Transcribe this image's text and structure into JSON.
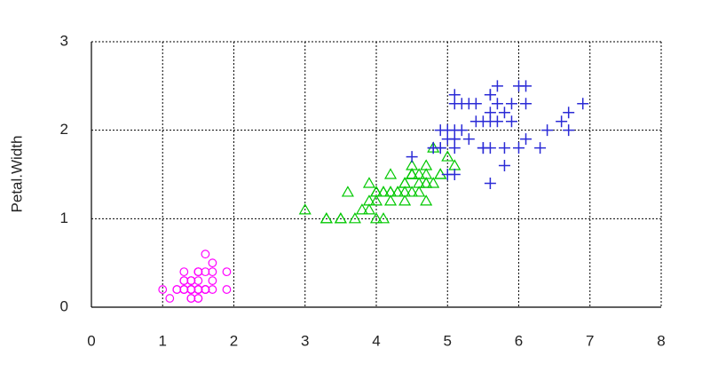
{
  "chart_data": {
    "type": "scatter",
    "y_label": "Petal.Width",
    "xlim": [
      0,
      8
    ],
    "xticks": [
      0,
      1,
      2,
      3,
      4,
      5,
      6,
      7,
      8
    ],
    "ylim": [
      0,
      3
    ],
    "yticks": [
      0,
      1,
      2,
      3
    ],
    "grid": true,
    "series": [
      {
        "color": "#ff00ff",
        "marker": "circle",
        "x": [
          1.4,
          1.4,
          1.3,
          1.5,
          1.4,
          1.7,
          1.4,
          1.5,
          1.4,
          1.5,
          1.5,
          1.6,
          1.4,
          1.1,
          1.2,
          1.5,
          1.3,
          1.4,
          1.7,
          1.5,
          1.7,
          1.5,
          1.0,
          1.7,
          1.9,
          1.6,
          1.6,
          1.5,
          1.4,
          1.6,
          1.6,
          1.5,
          1.5,
          1.4,
          1.5,
          1.2,
          1.3,
          1.4,
          1.3,
          1.5,
          1.3,
          1.3,
          1.3,
          1.6,
          1.9,
          1.4,
          1.6,
          1.4,
          1.5,
          1.4
        ],
        "values": [
          0.2,
          0.2,
          0.2,
          0.2,
          0.2,
          0.4,
          0.3,
          0.2,
          0.2,
          0.1,
          0.2,
          0.2,
          0.1,
          0.1,
          0.2,
          0.4,
          0.4,
          0.3,
          0.3,
          0.3,
          0.2,
          0.4,
          0.2,
          0.5,
          0.2,
          0.2,
          0.4,
          0.2,
          0.2,
          0.2,
          0.2,
          0.4,
          0.1,
          0.2,
          0.2,
          0.2,
          0.2,
          0.1,
          0.2,
          0.2,
          0.3,
          0.3,
          0.2,
          0.6,
          0.4,
          0.3,
          0.2,
          0.2,
          0.2,
          0.2
        ]
      },
      {
        "color": "#00c800",
        "marker": "triangle",
        "x": [
          4.7,
          4.5,
          4.9,
          4.0,
          4.6,
          4.5,
          4.7,
          3.3,
          4.6,
          3.9,
          3.5,
          4.2,
          4.0,
          4.7,
          3.6,
          4.4,
          4.5,
          4.1,
          4.5,
          3.9,
          4.8,
          4.0,
          4.9,
          4.7,
          4.3,
          4.4,
          4.8,
          5.0,
          4.5,
          3.5,
          3.8,
          3.7,
          3.9,
          5.1,
          4.5,
          4.5,
          4.7,
          4.4,
          4.1,
          4.0,
          4.4,
          4.6,
          4.0,
          3.3,
          4.2,
          4.2,
          4.2,
          4.3,
          3.0,
          4.1
        ],
        "values": [
          1.4,
          1.5,
          1.5,
          1.3,
          1.5,
          1.3,
          1.6,
          1.0,
          1.3,
          1.4,
          1.0,
          1.5,
          1.0,
          1.4,
          1.3,
          1.4,
          1.5,
          1.0,
          1.5,
          1.1,
          1.8,
          1.3,
          1.5,
          1.2,
          1.3,
          1.4,
          1.4,
          1.7,
          1.5,
          1.0,
          1.1,
          1.0,
          1.2,
          1.6,
          1.5,
          1.6,
          1.5,
          1.3,
          1.3,
          1.3,
          1.2,
          1.4,
          1.2,
          1.0,
          1.3,
          1.2,
          1.3,
          1.3,
          1.1,
          1.3
        ]
      },
      {
        "color": "#2b2bd6",
        "marker": "plus",
        "x": [
          6.0,
          5.1,
          5.9,
          5.6,
          5.8,
          6.6,
          4.5,
          6.3,
          5.8,
          6.1,
          5.1,
          5.3,
          5.5,
          5.0,
          5.1,
          5.3,
          5.5,
          6.7,
          6.9,
          5.0,
          5.7,
          4.9,
          6.7,
          4.9,
          5.7,
          6.0,
          4.8,
          4.9,
          5.6,
          5.8,
          6.1,
          6.4,
          5.6,
          5.1,
          5.6,
          6.1,
          5.6,
          5.5,
          4.8,
          5.4,
          5.6,
          5.1,
          5.1,
          5.9,
          5.7,
          5.2,
          5.0,
          5.2,
          5.4,
          5.1
        ],
        "values": [
          2.5,
          1.9,
          2.1,
          1.8,
          2.2,
          2.1,
          1.7,
          1.8,
          1.8,
          2.5,
          2.0,
          1.9,
          2.1,
          2.0,
          2.4,
          2.3,
          1.8,
          2.2,
          2.3,
          1.5,
          2.3,
          2.0,
          2.0,
          1.8,
          2.1,
          1.8,
          1.8,
          1.8,
          2.1,
          1.6,
          1.9,
          2.0,
          2.2,
          1.5,
          1.4,
          2.3,
          2.4,
          1.8,
          1.8,
          2.1,
          2.4,
          2.3,
          1.9,
          2.3,
          2.5,
          2.3,
          1.9,
          2.0,
          2.3,
          1.8
        ]
      }
    ]
  }
}
